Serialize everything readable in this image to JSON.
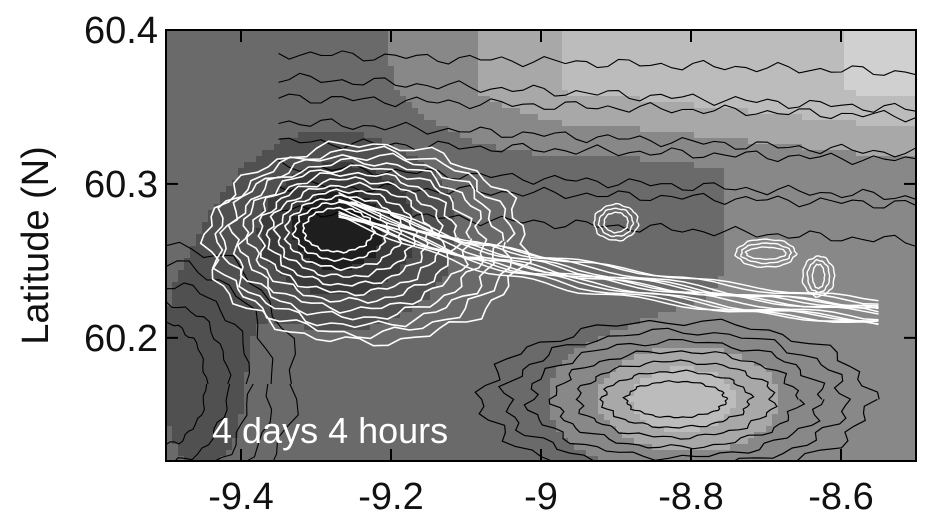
{
  "chart_data": {
    "type": "contour",
    "title": "",
    "xlabel": "",
    "ylabel": "Latitude (N)",
    "xlim": [
      -9.5,
      -8.5
    ],
    "ylim": [
      60.12,
      60.4
    ],
    "x_ticks": [
      -9.4,
      -9.2,
      -9.0,
      -8.8,
      -8.6
    ],
    "x_tick_labels": [
      "-9.4",
      "-9.2",
      "-9",
      "-8.8",
      "-8.6"
    ],
    "y_ticks": [
      60.2,
      60.3,
      60.4
    ],
    "y_tick_labels": [
      "60.2",
      "60.3",
      "60.4"
    ],
    "annotation": "4 days 4 hours",
    "grayscale": true,
    "field": {
      "description_free": true,
      "background_level": 0.45,
      "eddy_center": [
        -9.27,
        60.27
      ],
      "jet_axis": [
        [
          -9.27,
          60.285
        ],
        [
          -9.1,
          60.255
        ],
        [
          -8.95,
          60.24
        ],
        [
          -8.75,
          60.225
        ],
        [
          -8.55,
          60.215
        ]
      ],
      "light_region_center": [
        -8.82,
        60.16
      ],
      "light_top_right_level": 0.75
    },
    "colors": {
      "darkest": "#1e1e1e",
      "dark": "#3a3a3a",
      "mid": "#6a6a6a",
      "light": "#a8a8a8",
      "lightest": "#d0d0d0",
      "black_contour": "#000000",
      "white_contour": "#ffffff"
    }
  }
}
